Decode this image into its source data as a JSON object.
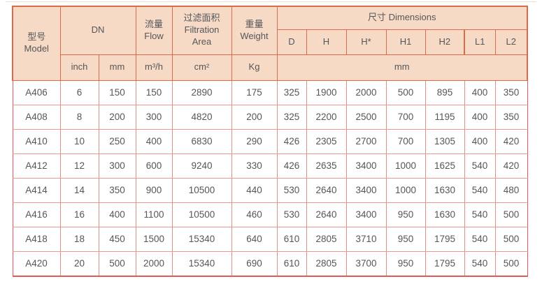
{
  "table": {
    "header": {
      "model_zh": "型号",
      "model_en": "Model",
      "dn": "DN",
      "flow_zh": "流量",
      "flow_en": "Flow",
      "filtration_zh": "过滤面积",
      "filtration_en": "Filtration Area",
      "weight_zh": "重量",
      "weight_en": "Weight",
      "dimensions": "尺寸 Dimensions",
      "dim_cols": [
        "D",
        "H",
        "H*",
        "H1",
        "H2",
        "L1",
        "L2"
      ],
      "unit_inch": "inch",
      "unit_mm": "mm",
      "unit_flow": "m³/h",
      "unit_area": "cm²",
      "unit_weight": "Kg",
      "unit_dims": "mm"
    },
    "rows": [
      [
        "A406",
        "6",
        "150",
        "150",
        "2890",
        "175",
        "325",
        "1900",
        "2000",
        "500",
        "895",
        "400",
        "350"
      ],
      [
        "A408",
        "8",
        "200",
        "300",
        "4820",
        "200",
        "325",
        "2200",
        "2500",
        "700",
        "1195",
        "400",
        "350"
      ],
      [
        "A410",
        "10",
        "250",
        "400",
        "6830",
        "290",
        "426",
        "2305",
        "2700",
        "700",
        "1305",
        "400",
        "420"
      ],
      [
        "A412",
        "12",
        "300",
        "600",
        "9240",
        "330",
        "426",
        "2635",
        "3400",
        "1000",
        "1625",
        "540",
        "420"
      ],
      [
        "A414",
        "14",
        "350",
        "900",
        "10500",
        "440",
        "530",
        "2640",
        "3400",
        "1000",
        "1630",
        "540",
        "480"
      ],
      [
        "A416",
        "16",
        "400",
        "1100",
        "10500",
        "460",
        "530",
        "2640",
        "3400",
        "950",
        "1630",
        "540",
        "500"
      ],
      [
        "A418",
        "18",
        "450",
        "1500",
        "15340",
        "640",
        "610",
        "2805",
        "3710",
        "950",
        "1795",
        "540",
        "500"
      ],
      [
        "A420",
        "20",
        "500",
        "2000",
        "15340",
        "690",
        "610",
        "2805",
        "3700",
        "950",
        "1795",
        "540",
        "500"
      ]
    ],
    "colors": {
      "header_bg": "#f6dac6",
      "header_border": "#d96a4a",
      "data_border_h": "#f0958f",
      "data_border_v": "#e18e89",
      "outer_border": "#e25a52",
      "text": "#55565a"
    }
  }
}
